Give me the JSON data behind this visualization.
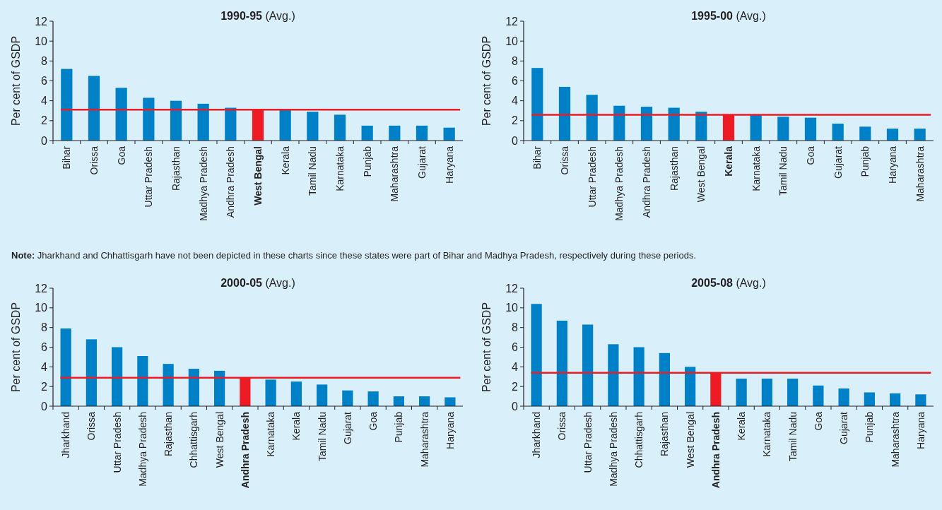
{
  "chart_data": [
    {
      "type": "bar",
      "title": "1990-95",
      "subtitle": "(Avg.)",
      "ylabel": "Per cent of GSDP",
      "categories": [
        "Bihar",
        "Orissa",
        "Goa",
        "Uttar Pradesh",
        "Rajasthan",
        "Madhya Pradesh",
        "Andhra Pradesh",
        "West Bengal",
        "Kerala",
        "Tamil Nadu",
        "Karnataka",
        "Punjab",
        "Maharashtra",
        "Gujarat",
        "Haryana"
      ],
      "values": [
        7.2,
        6.5,
        5.3,
        4.3,
        4.0,
        3.7,
        3.3,
        3.1,
        3.1,
        2.9,
        2.6,
        1.5,
        1.5,
        1.5,
        1.3
      ],
      "color": "#0080c6",
      "colors": [
        "#0080c6",
        "#0080c6",
        "#0080c6",
        "#0080c6",
        "#0080c6",
        "#0080c6",
        "#0080c6",
        "#ed1c24",
        "#0080c6",
        "#0080c6",
        "#0080c6",
        "#0080c6",
        "#0080c6",
        "#0080c6",
        "#0080c6"
      ],
      "ylim": [
        0,
        12
      ],
      "yticks": [
        0,
        2,
        4,
        6,
        8,
        10,
        12
      ],
      "ref_lines": [
        {
          "axis": "y",
          "value": 3.1,
          "color": "#ed1c24"
        }
      ],
      "annotations": [
        "Note: Jharkhand and Chhattisgarh have not been depicted in these charts since these states were part of Bihar and Madhya Pradesh, respectively during these periods."
      ]
    },
    {
      "type": "bar",
      "title": "1995-00",
      "subtitle": "(Avg.)",
      "ylabel": "Per cent of GSDP",
      "categories": [
        "Bihar",
        "Orissa",
        "Uttar Pradesh",
        "Madhya Pradesh",
        "Andhra Pradesh",
        "Rajasthan",
        "West Bengal",
        "Kerala",
        "Karnataka",
        "Tamil Nadu",
        "Goa",
        "Gujarat",
        "Punjab",
        "Haryana",
        "Maharashtra"
      ],
      "values": [
        7.3,
        5.4,
        4.6,
        3.5,
        3.4,
        3.3,
        2.9,
        2.6,
        2.6,
        2.4,
        2.3,
        1.7,
        1.4,
        1.2,
        1.2
      ],
      "color": "#0080c6",
      "colors": [
        "#0080c6",
        "#0080c6",
        "#0080c6",
        "#0080c6",
        "#0080c6",
        "#0080c6",
        "#0080c6",
        "#ed1c24",
        "#0080c6",
        "#0080c6",
        "#0080c6",
        "#0080c6",
        "#0080c6",
        "#0080c6",
        "#0080c6"
      ],
      "ylim": [
        0,
        12
      ],
      "yticks": [
        0,
        2,
        4,
        6,
        8,
        10,
        12
      ],
      "ref_lines": [
        {
          "axis": "y",
          "value": 2.6,
          "color": "#ed1c24"
        }
      ]
    },
    {
      "type": "bar",
      "title": "2000-05",
      "subtitle": "(Avg.)",
      "ylabel": "Per cent of GSDP",
      "categories": [
        "Jharkhand",
        "Orissa",
        "Uttar Pradesh",
        "Madhya Pradesh",
        "Rajasthan",
        "Chhattisgarh",
        "West Bengal",
        "Andhra Pradesh",
        "Karnataka",
        "Kerala",
        "Tamil Nadu",
        "Gujarat",
        "Goa",
        "Punjab",
        "Maharashtra",
        "Haryana"
      ],
      "values": [
        7.9,
        6.8,
        6.0,
        5.1,
        4.3,
        3.8,
        3.6,
        2.9,
        2.7,
        2.5,
        2.2,
        1.6,
        1.5,
        1.0,
        1.0,
        0.9
      ],
      "color": "#0080c6",
      "colors": [
        "#0080c6",
        "#0080c6",
        "#0080c6",
        "#0080c6",
        "#0080c6",
        "#0080c6",
        "#0080c6",
        "#ed1c24",
        "#0080c6",
        "#0080c6",
        "#0080c6",
        "#0080c6",
        "#0080c6",
        "#0080c6",
        "#0080c6",
        "#0080c6"
      ],
      "ylim": [
        0,
        12
      ],
      "yticks": [
        0,
        2,
        4,
        6,
        8,
        10,
        12
      ],
      "ref_lines": [
        {
          "axis": "y",
          "value": 2.9,
          "color": "#ed1c24"
        }
      ]
    },
    {
      "type": "bar",
      "title": "2005-08",
      "subtitle": "(Avg.)",
      "ylabel": "Per cent of GSDP",
      "categories": [
        "Jharkhand",
        "Orissa",
        "Uttar Pradesh",
        "Madhya Pradesh",
        "Chhattisgarh",
        "Rajasthan",
        "West Bengal",
        "Andhra Pradesh",
        "Kerala",
        "Karnataka",
        "Tamil Nadu",
        "Goa",
        "Gujarat",
        "Punjab",
        "Maharashtra",
        "Haryana"
      ],
      "values": [
        10.4,
        8.7,
        8.3,
        6.3,
        6.0,
        5.4,
        4.0,
        3.4,
        2.8,
        2.8,
        2.8,
        2.1,
        1.8,
        1.4,
        1.3,
        1.2
      ],
      "color": "#0080c6",
      "colors": [
        "#0080c6",
        "#0080c6",
        "#0080c6",
        "#0080c6",
        "#0080c6",
        "#0080c6",
        "#0080c6",
        "#ed1c24",
        "#0080c6",
        "#0080c6",
        "#0080c6",
        "#0080c6",
        "#0080c6",
        "#0080c6",
        "#0080c6",
        "#0080c6"
      ],
      "ylim": [
        0,
        12
      ],
      "yticks": [
        0,
        2,
        4,
        6,
        8,
        10,
        12
      ],
      "ref_lines": [
        {
          "axis": "y",
          "value": 3.4,
          "color": "#ed1c24"
        }
      ]
    }
  ]
}
